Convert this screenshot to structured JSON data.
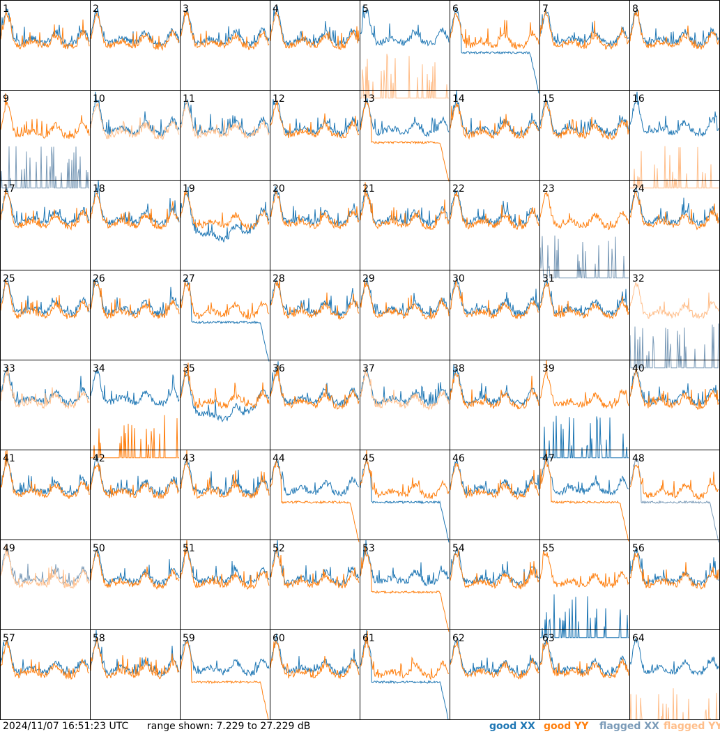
{
  "chart_data": {
    "type": "line",
    "grid": {
      "rows": 8,
      "cols": 8
    },
    "panel_labels": [
      "1",
      "2",
      "3",
      "4",
      "5",
      "6",
      "7",
      "8",
      "9",
      "10",
      "11",
      "12",
      "13",
      "14",
      "15",
      "16",
      "17",
      "18",
      "19",
      "20",
      "21",
      "22",
      "23",
      "24",
      "25",
      "26",
      "27",
      "28",
      "29",
      "30",
      "31",
      "32",
      "33",
      "34",
      "35",
      "36",
      "37",
      "38",
      "39",
      "40",
      "41",
      "42",
      "43",
      "44",
      "45",
      "46",
      "47",
      "48",
      "49",
      "50",
      "51",
      "52",
      "53",
      "54",
      "55",
      "56",
      "57",
      "58",
      "59",
      "60",
      "61",
      "62",
      "63",
      "64"
    ],
    "ylim": [
      7.229,
      27.229
    ],
    "legend": [
      {
        "label": "good XX",
        "color": "#1f77b4"
      },
      {
        "label": "good YY",
        "color": "#ff7f0e"
      },
      {
        "label": "flagged XX",
        "color": "#7b9bb8"
      },
      {
        "label": "flagged YY",
        "color": "#ffbe8a"
      }
    ],
    "panels": {
      "1": {
        "xx": "n",
        "yy": "n"
      },
      "5": {
        "xx": "n",
        "yy": "fz"
      },
      "6": {
        "xx": "d",
        "yy": "n"
      },
      "8": {
        "xx": "n",
        "yy": "n"
      },
      "9": {
        "xx": "fz",
        "yy": "n"
      },
      "10": {
        "xx": "n",
        "yy": "fn"
      },
      "11": {
        "xx": "n",
        "yy": "fn"
      },
      "13": {
        "xx": "n",
        "yy": "d"
      },
      "16": {
        "xx": "n",
        "yy": "fz"
      },
      "19": {
        "xx": "dip",
        "yy": "n"
      },
      "23": {
        "xx": "fz",
        "yy": "n"
      },
      "27": {
        "xx": "d",
        "yy": "n"
      },
      "32": {
        "xx": "fz",
        "yy": "fn"
      },
      "33": {
        "xx": "n",
        "yy": "fn"
      },
      "34": {
        "xx": "n",
        "yy": "z"
      },
      "35": {
        "xx": "dip",
        "yy": "n"
      },
      "37": {
        "xx": "n",
        "yy": "fn"
      },
      "39": {
        "xx": "z",
        "yy": "n"
      },
      "44": {
        "xx": "n",
        "yy": "d"
      },
      "45": {
        "xx": "d",
        "yy": "n"
      },
      "47": {
        "xx": "n",
        "yy": "d"
      },
      "48": {
        "xx": "fd",
        "yy": "n"
      },
      "49": {
        "xx": "fn",
        "yy": "fn"
      },
      "53": {
        "xx": "n",
        "yy": "d"
      },
      "55": {
        "xx": "z",
        "yy": "n"
      },
      "59": {
        "xx": "n",
        "yy": "d"
      },
      "61": {
        "xx": "d",
        "yy": "n"
      },
      "64": {
        "xx": "n",
        "yy": "fz"
      }
    }
  },
  "footer": {
    "timestamp": "2024/11/07 16:51:23 UTC",
    "range_text": "range shown: 7.229 to 27.229 dB"
  }
}
